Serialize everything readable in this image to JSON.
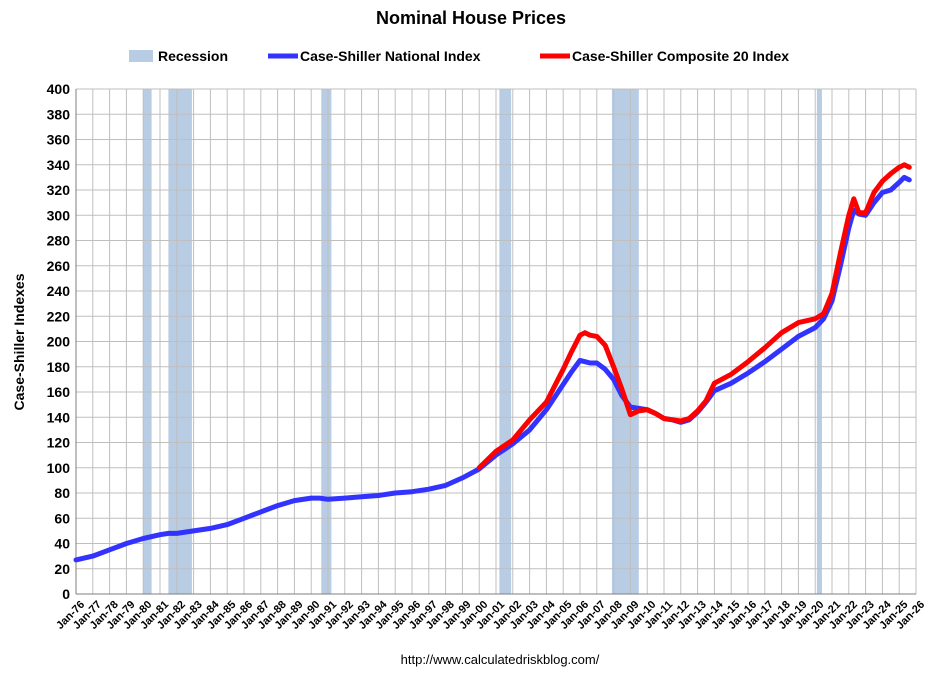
{
  "colors": {
    "recession": "#b8cce4",
    "national": "#3333ff",
    "composite": "#ff0000",
    "grid": "#bfbfbf",
    "axis": "#7f7f7f"
  },
  "footer": "http://www.calculatedriskblog.com/",
  "chart_data": {
    "type": "line",
    "title": "Nominal House Prices",
    "xlabel": "",
    "ylabel": "Case-Shiller Indexes",
    "xlim": [
      1976,
      2026
    ],
    "ylim": [
      0,
      400
    ],
    "ytick_step": 20,
    "grid": true,
    "legend_position": "top-center",
    "legend": {
      "recession": "Recession",
      "national": "Case-Shiller National Index",
      "composite": "Case-Shiller Composite 20 Index"
    },
    "x_tick_labels": [
      "Jan-76",
      "Jan-77",
      "Jan-78",
      "Jan-79",
      "Jan-80",
      "Jan-81",
      "Jan-82",
      "Jan-83",
      "Jan-84",
      "Jan-85",
      "Jan-86",
      "Jan-87",
      "Jan-88",
      "Jan-89",
      "Jan-90",
      "Jan-91",
      "Jan-92",
      "Jan-93",
      "Jan-94",
      "Jan-95",
      "Jan-96",
      "Jan-97",
      "Jan-98",
      "Jan-99",
      "Jan-00",
      "Jan-01",
      "Jan-02",
      "Jan-03",
      "Jan-04",
      "Jan-05",
      "Jan-06",
      "Jan-07",
      "Jan-08",
      "Jan-09",
      "Jan-10",
      "Jan-11",
      "Jan-12",
      "Jan-13",
      "Jan-14",
      "Jan-15",
      "Jan-16",
      "Jan-17",
      "Jan-18",
      "Jan-19",
      "Jan-20",
      "Jan-21",
      "Jan-22",
      "Jan-23",
      "Jan-24",
      "Jan-25",
      "Jan-26"
    ],
    "recessions": [
      [
        1980.0,
        1980.5
      ],
      [
        1981.5,
        1982.9
      ],
      [
        1990.6,
        1991.2
      ],
      [
        2001.2,
        2001.9
      ],
      [
        2007.9,
        2009.5
      ],
      [
        2020.1,
        2020.4
      ]
    ],
    "series": [
      {
        "name": "Case-Shiller National Index",
        "x": [
          1976.0,
          1977.0,
          1978.0,
          1979.0,
          1980.0,
          1981.0,
          1981.5,
          1982.0,
          1983.0,
          1984.0,
          1985.0,
          1986.0,
          1987.0,
          1988.0,
          1989.0,
          1990.0,
          1990.5,
          1991.0,
          1992.0,
          1993.0,
          1994.0,
          1995.0,
          1996.0,
          1997.0,
          1998.0,
          1999.0,
          2000.0,
          2001.0,
          2002.0,
          2003.0,
          2004.0,
          2005.0,
          2005.5,
          2006.0,
          2006.3,
          2006.6,
          2007.0,
          2007.5,
          2008.0,
          2008.5,
          2009.0,
          2009.5,
          2010.0,
          2010.5,
          2011.0,
          2011.5,
          2012.0,
          2012.5,
          2013.0,
          2013.5,
          2014.0,
          2015.0,
          2016.0,
          2017.0,
          2018.0,
          2019.0,
          2020.0,
          2020.5,
          2021.0,
          2021.5,
          2022.0,
          2022.3,
          2022.6,
          2023.0,
          2023.5,
          2024.0,
          2024.5,
          2025.0,
          2025.3,
          2025.6
        ],
        "values": [
          27,
          30,
          35,
          40,
          44,
          47,
          48,
          48,
          50,
          52,
          55,
          60,
          65,
          70,
          74,
          76,
          76,
          75,
          76,
          77,
          78,
          80,
          81,
          83,
          86,
          92,
          99,
          110,
          119,
          130,
          146,
          166,
          176,
          185,
          184,
          183,
          183,
          178,
          170,
          157,
          148,
          147,
          146,
          143,
          139,
          138,
          136,
          138,
          144,
          152,
          161,
          167,
          175,
          184,
          194,
          204,
          211,
          218,
          232,
          260,
          290,
          304,
          301,
          300,
          310,
          318,
          320,
          326,
          330,
          328
        ]
      },
      {
        "name": "Case-Shiller Composite 20 Index",
        "x": [
          2000.0,
          2001.0,
          2002.0,
          2003.0,
          2004.0,
          2005.0,
          2005.5,
          2006.0,
          2006.3,
          2006.6,
          2007.0,
          2007.5,
          2008.0,
          2008.5,
          2009.0,
          2009.5,
          2010.0,
          2010.5,
          2011.0,
          2011.5,
          2012.0,
          2012.5,
          2013.0,
          2013.5,
          2014.0,
          2015.0,
          2016.0,
          2017.0,
          2018.0,
          2019.0,
          2020.0,
          2020.5,
          2021.0,
          2021.5,
          2022.0,
          2022.3,
          2022.6,
          2023.0,
          2023.5,
          2024.0,
          2024.5,
          2025.0,
          2025.3,
          2025.6
        ],
        "values": [
          100,
          113,
          122,
          138,
          152,
          178,
          192,
          205,
          207,
          205,
          204,
          197,
          180,
          162,
          142,
          145,
          146,
          143,
          139,
          138,
          137,
          139,
          145,
          153,
          167,
          174,
          184,
          195,
          207,
          215,
          218,
          222,
          238,
          270,
          300,
          313,
          302,
          302,
          318,
          327,
          333,
          338,
          340,
          338
        ]
      }
    ]
  }
}
